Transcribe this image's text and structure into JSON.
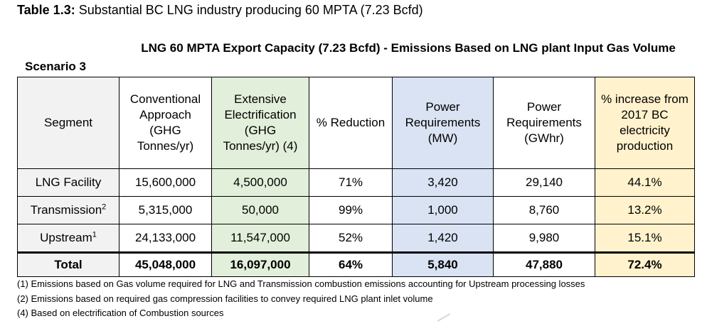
{
  "table_label": "Table 1.3:",
  "table_title": "Substantial BC LNG industry producing 60 MPTA (7.23 Bcfd)",
  "scenario": "Scenario 3",
  "heading": "LNG 60 MPTA Export Capacity (7.23 Bcfd) - Emissions Based on LNG plant Input Gas Volume",
  "columns": [
    "Segment",
    "Conventional Approach (GHG Tonnes/yr)",
    "Extensive Electrification (GHG Tonnes/yr) (4)",
    "% Reduction",
    "Power Requirements (MW)",
    "Power Requirements (GWhr)",
    "% increase from 2017 BC electricity production"
  ],
  "rows": [
    {
      "segment": "LNG Facility",
      "sup": "",
      "conventional": "15,600,000",
      "electrification": "4,500,000",
      "reduction": "71%",
      "mw": "3,420",
      "gwhr": "29,140",
      "increase": "44.1%"
    },
    {
      "segment": "Transmission",
      "sup": "2",
      "conventional": "5,315,000",
      "electrification": "50,000",
      "reduction": "99%",
      "mw": "1,000",
      "gwhr": "8,760",
      "increase": "13.2%"
    },
    {
      "segment": "Upstream",
      "sup": "1",
      "conventional": "24,133,000",
      "electrification": "11,547,000",
      "reduction": "52%",
      "mw": "1,420",
      "gwhr": "9,980",
      "increase": "15.1%"
    }
  ],
  "total": {
    "segment": "Total",
    "conventional": "45,048,000",
    "electrification": "16,097,000",
    "reduction": "64%",
    "mw": "5,840",
    "gwhr": "47,880",
    "increase": "72.4%"
  },
  "notes": [
    "(1) Emissions based on Gas volume required for LNG and Transmission combustion emissions accounting for Upstream processing losses",
    "(2) Emissions based on required gas compression facilities to convey required LNG plant inlet volume",
    "(4) Based on electrification of Combustion sources"
  ],
  "colors": {
    "segment_bg": "#f2f2f2",
    "green": "#e2efda",
    "blue": "#dae3f3",
    "orange": "#fff2cc"
  }
}
